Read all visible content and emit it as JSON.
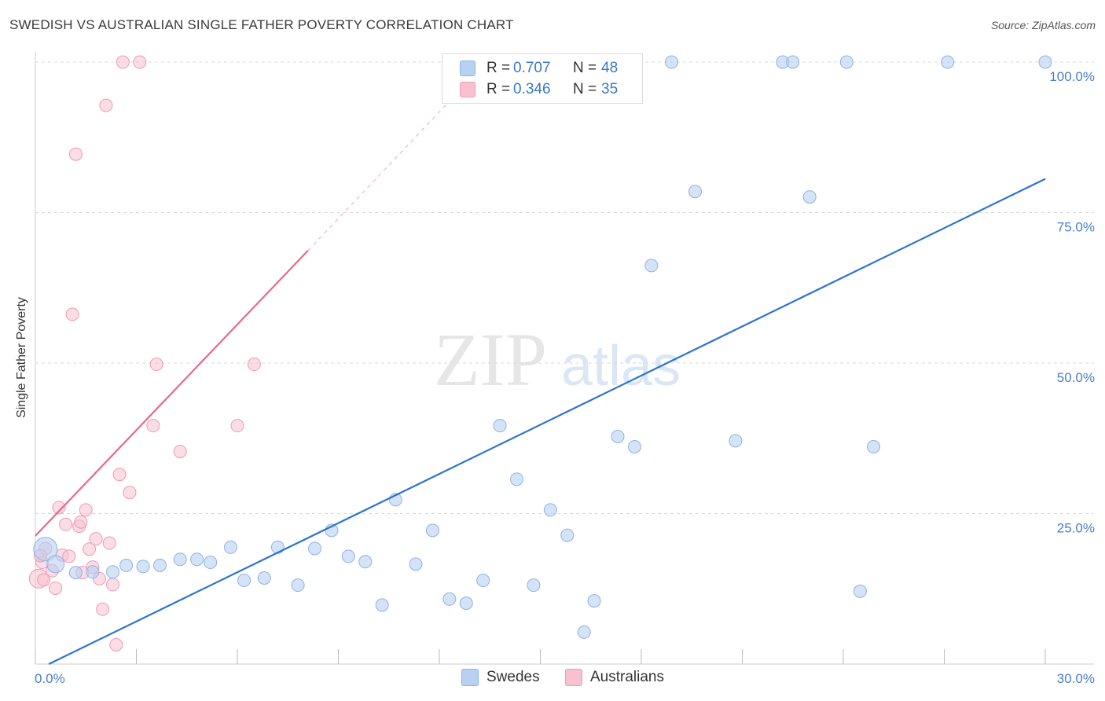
{
  "title": "SWEDISH VS AUSTRALIAN SINGLE FATHER POVERTY CORRELATION CHART",
  "source": "Source: ZipAtlas.com",
  "watermark": {
    "zip": "ZIP",
    "atlas": "atlas"
  },
  "legend": {
    "r_label": "R =",
    "n_label": "N =",
    "rows": [
      {
        "name": "Swedes",
        "r": "0.707",
        "n": "48"
      },
      {
        "name": "Australians",
        "r": "0.346",
        "n": "35"
      }
    ]
  },
  "colors": {
    "swedes_fill": "#b8d1f3",
    "swedes_stroke": "#8fb2e3",
    "swedes_line": "#2c73d2",
    "aus_fill": "#f7c1d0",
    "aus_stroke": "#ee9ab2",
    "aus_line": "#e8688f",
    "grid": "#d9d9d9",
    "tick_text": "#4a7ec9"
  },
  "chart_data": {
    "type": "scatter",
    "title": "SWEDISH VS AUSTRALIAN SINGLE FATHER POVERTY CORRELATION CHART",
    "xlabel": "",
    "ylabel": "Single Father Poverty",
    "xlim": [
      0,
      30
    ],
    "ylim": [
      0,
      100
    ],
    "x_tick_labels": [
      "0.0%",
      "30.0%"
    ],
    "y_ticks": [
      25,
      50,
      75,
      100
    ],
    "y_tick_labels": [
      "25.0%",
      "50.0%",
      "75.0%",
      "100.0%"
    ],
    "legend_position": "top-center",
    "series": [
      {
        "name": "Swedes",
        "points": [
          [
            0.3,
            19.1
          ],
          [
            0.6,
            16.6
          ],
          [
            1.2,
            15.2
          ],
          [
            1.7,
            15.3
          ],
          [
            2.3,
            15.3
          ],
          [
            2.7,
            16.4
          ],
          [
            3.2,
            16.2
          ],
          [
            3.7,
            16.4
          ],
          [
            4.3,
            17.4
          ],
          [
            4.8,
            17.4
          ],
          [
            5.2,
            16.9
          ],
          [
            5.8,
            19.4
          ],
          [
            6.2,
            13.9
          ],
          [
            6.8,
            14.3
          ],
          [
            7.2,
            19.4
          ],
          [
            7.8,
            13.1
          ],
          [
            8.3,
            19.2
          ],
          [
            8.8,
            22.2
          ],
          [
            9.3,
            17.9
          ],
          [
            9.8,
            17.0
          ],
          [
            10.3,
            9.8
          ],
          [
            10.7,
            27.3
          ],
          [
            11.3,
            16.6
          ],
          [
            11.8,
            22.2
          ],
          [
            12.3,
            10.8
          ],
          [
            12.8,
            10.1
          ],
          [
            13.3,
            13.9
          ],
          [
            13.8,
            39.6
          ],
          [
            14.3,
            30.7
          ],
          [
            14.8,
            13.1
          ],
          [
            15.3,
            25.6
          ],
          [
            15.8,
            21.4
          ],
          [
            16.3,
            5.3
          ],
          [
            16.6,
            10.5
          ],
          [
            17.3,
            37.8
          ],
          [
            17.8,
            36.1
          ],
          [
            18.3,
            66.2
          ],
          [
            18.9,
            100.0
          ],
          [
            19.6,
            78.5
          ],
          [
            20.8,
            37.1
          ],
          [
            22.2,
            100.0
          ],
          [
            22.5,
            100.0
          ],
          [
            23.0,
            77.6
          ],
          [
            24.1,
            100.0
          ],
          [
            24.5,
            12.1
          ],
          [
            24.9,
            36.1
          ],
          [
            27.1,
            100.0
          ],
          [
            30.0,
            100.0
          ]
        ],
        "regression": {
          "x": [
            0.4,
            30.0
          ],
          "y": [
            0.0,
            80.6
          ]
        }
      },
      {
        "name": "Australians",
        "points": [
          [
            0.1,
            14.2
          ],
          [
            0.2,
            16.9
          ],
          [
            0.3,
            19.2
          ],
          [
            0.5,
            15.5
          ],
          [
            0.6,
            12.6
          ],
          [
            0.7,
            26.0
          ],
          [
            0.8,
            18.1
          ],
          [
            0.9,
            23.2
          ],
          [
            1.0,
            17.9
          ],
          [
            1.1,
            58.1
          ],
          [
            1.2,
            84.7
          ],
          [
            1.3,
            22.9
          ],
          [
            1.35,
            23.6
          ],
          [
            1.5,
            25.6
          ],
          [
            1.6,
            19.1
          ],
          [
            1.7,
            16.1
          ],
          [
            1.8,
            20.8
          ],
          [
            1.9,
            14.2
          ],
          [
            2.0,
            9.1
          ],
          [
            2.1,
            92.8
          ],
          [
            2.2,
            20.1
          ],
          [
            2.3,
            13.2
          ],
          [
            2.4,
            3.2
          ],
          [
            2.5,
            31.5
          ],
          [
            2.6,
            100.0
          ],
          [
            2.8,
            28.5
          ],
          [
            3.1,
            100.0
          ],
          [
            3.5,
            39.6
          ],
          [
            3.6,
            49.8
          ],
          [
            4.3,
            35.3
          ],
          [
            6.0,
            39.6
          ],
          [
            6.5,
            49.8
          ],
          [
            0.15,
            18.0
          ],
          [
            0.25,
            14.0
          ],
          [
            1.4,
            15.2
          ]
        ],
        "regression": {
          "x": [
            0.0,
            8.1
          ],
          "y": [
            21.3,
            68.7
          ]
        },
        "regression_dashed_extension": {
          "x": [
            8.1,
            12.3
          ],
          "y": [
            68.7,
            93.5
          ]
        }
      }
    ]
  }
}
